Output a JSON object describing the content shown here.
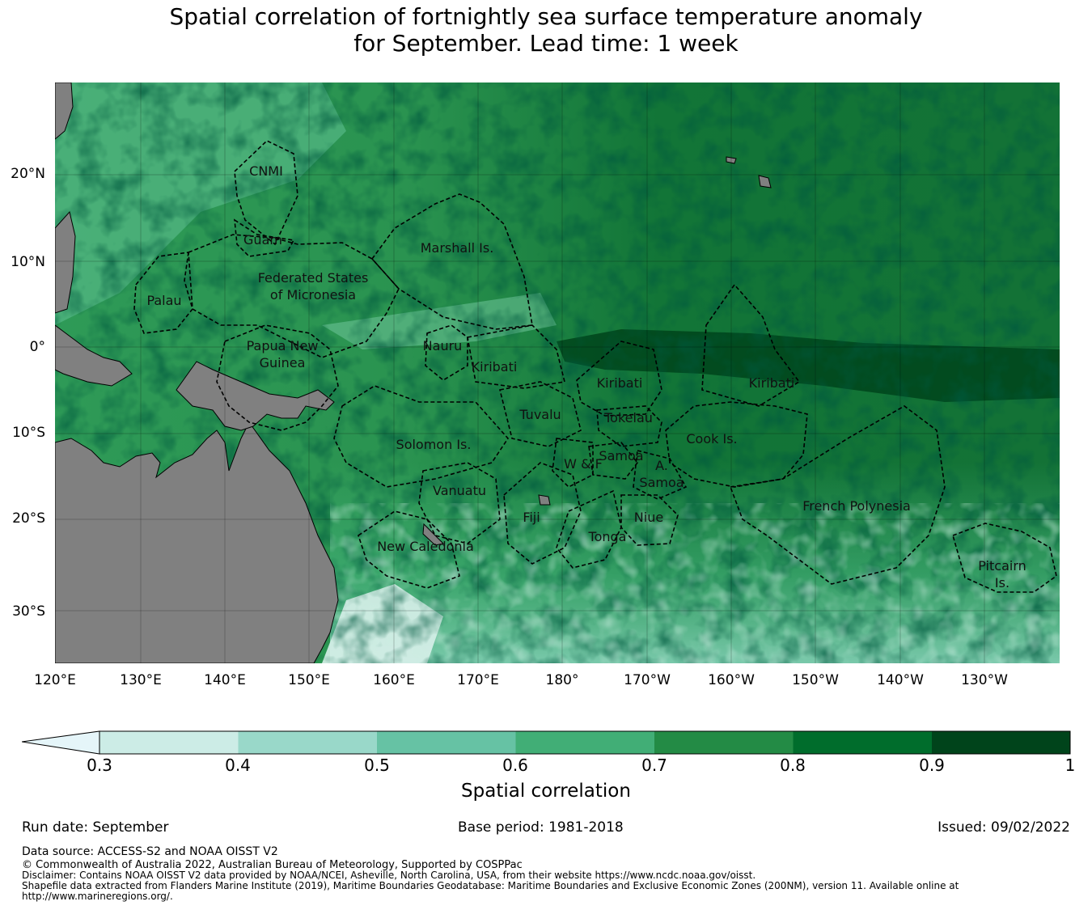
{
  "title": {
    "line1": "Spatial correlation of fortnightly sea surface temperature anomaly",
    "line2": "for September. Lead time: 1 week"
  },
  "map": {
    "lat_labels": [
      "20°N",
      "10°N",
      "0°",
      "10°S",
      "20°S",
      "30°S"
    ],
    "lon_labels": [
      "120°E",
      "130°E",
      "140°E",
      "150°E",
      "160°E",
      "170°E",
      "180°",
      "170°W",
      "160°W",
      "150°W",
      "140°W",
      "130°W"
    ],
    "land_color": "#808080",
    "regions": [
      {
        "id": "cnmi",
        "label": "CNMI"
      },
      {
        "id": "guam",
        "label": "Guam"
      },
      {
        "id": "marshall",
        "label": "Marshall Is."
      },
      {
        "id": "fsm",
        "label": "Federated States\nof Micronesia"
      },
      {
        "id": "palau",
        "label": "Palau"
      },
      {
        "id": "png",
        "label": "Papua New\nGuinea"
      },
      {
        "id": "nauru",
        "label": "Nauru"
      },
      {
        "id": "kiribati-w",
        "label": "Kiribati"
      },
      {
        "id": "kiribati-c",
        "label": "Kiribati"
      },
      {
        "id": "kiribati-e",
        "label": "Kiribati"
      },
      {
        "id": "tuvalu",
        "label": "Tuvalu"
      },
      {
        "id": "tokelau",
        "label": "Tokelau"
      },
      {
        "id": "solomon",
        "label": "Solomon Is."
      },
      {
        "id": "cook",
        "label": "Cook Is."
      },
      {
        "id": "samoa",
        "label": "Samoa"
      },
      {
        "id": "wf",
        "label": "W & F"
      },
      {
        "id": "asamoa",
        "label": "A.\nSamoa"
      },
      {
        "id": "vanuatu",
        "label": "Vanuatu"
      },
      {
        "id": "fiji",
        "label": "Fiji"
      },
      {
        "id": "niue",
        "label": "Niue"
      },
      {
        "id": "tonga",
        "label": "Tonga"
      },
      {
        "id": "frpoly",
        "label": "French Polynesia"
      },
      {
        "id": "newcal",
        "label": "New Caledonia"
      },
      {
        "id": "pitcairn",
        "label": "Pitcairn\nIs."
      }
    ]
  },
  "colorbar": {
    "ticks": [
      "0.3",
      "0.4",
      "0.5",
      "0.6",
      "0.7",
      "0.8",
      "0.9",
      "1"
    ],
    "colors": [
      "#ccece6",
      "#99d8c9",
      "#66c2a4",
      "#41ae76",
      "#238b45",
      "#006d2c",
      "#00441b"
    ],
    "extend_color": "#e5f5f9",
    "label": "Spatial correlation"
  },
  "footer": {
    "run_date": "Run date: September",
    "base_period": "Base period: 1981-2018",
    "issued": "Issued: 09/02/2022",
    "data_source": "Data source: ACCESS-S2 and NOAA OISST V2",
    "copyright": "© Commonwealth of Australia 2022, Australian Bureau of Meteorology, Supported by COSPPac",
    "disclaimer": "Disclaimer: Contains NOAA OISST V2 data provided by NOAA/NCEI, Asheville, North Carolina, USA, from their website https://www.ncdc.noaa.gov/oisst.",
    "shapefile": "Shapefile data extracted from Flanders Marine Institute (2019), Maritime Boundaries Geodatabase: Maritime Boundaries and Exclusive Economic Zones (200NM), version 11. Available online at http://www.marineregions.org/."
  }
}
